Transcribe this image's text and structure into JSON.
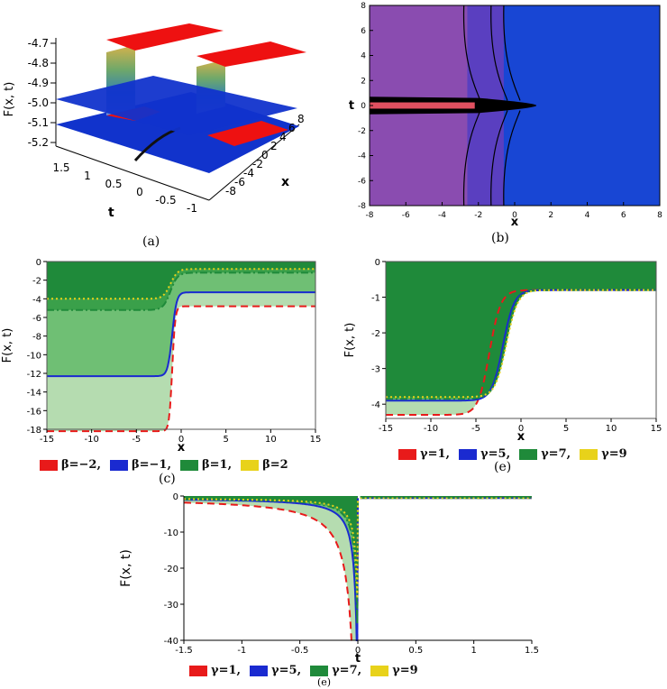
{
  "chart_data": [
    {
      "id": "a",
      "type": "surface3d",
      "caption": "(a)",
      "zlabel": "F(x, t)",
      "zticks": [
        "-4.7",
        "-4.8",
        "-4.9",
        "-5.0",
        "-5.1",
        "-5.2"
      ],
      "tlabel": "t",
      "tticks": [
        "1.5",
        "1",
        "0.5",
        "0",
        "-0.5",
        "-1"
      ],
      "xlabel": "x",
      "xticks": [
        "-8",
        "-6",
        "-4",
        "-2",
        "0",
        "2",
        "4",
        "6",
        "8"
      ],
      "colors": {
        "top": "#ee1111",
        "bottom": "#1133cc"
      }
    },
    {
      "id": "b",
      "type": "contour",
      "caption": "(b)",
      "xlabel": "x",
      "ylabel": "t",
      "xlim": [
        -8,
        8
      ],
      "ylim": [
        -8,
        8
      ],
      "xticks": [
        "-8",
        "-6",
        "-4",
        "-2",
        "0",
        "2",
        "4",
        "6",
        "8"
      ],
      "yticks": [
        "8",
        "6",
        "4",
        "2",
        "0",
        "-2",
        "-4",
        "-6",
        "-8"
      ],
      "regions": {
        "left": "#8a4cb0",
        "middle": "#5a3fc0",
        "right": "#1846d4",
        "stripe": "#e05060"
      }
    },
    {
      "id": "c",
      "type": "line",
      "caption": "(c)",
      "xlabel": "x",
      "ylabel": "F(x, t)",
      "xlim": [
        -15,
        15
      ],
      "ylim": [
        -18,
        0
      ],
      "xticks": [
        "-15",
        "-10",
        "-5",
        "0",
        "5",
        "10",
        "15"
      ],
      "yticks": [
        "0",
        "-2",
        "-4",
        "-6",
        "-8",
        "-10",
        "-12",
        "-14",
        "-16",
        "-18"
      ],
      "series": [
        {
          "name": "β=−2,",
          "color": "#e81a1a",
          "dash": "8,5",
          "left": -18.2,
          "right": -4.8,
          "center": -1.0,
          "k": 6
        },
        {
          "name": "β=−1,",
          "color": "#1a2ad0",
          "dash": "",
          "left": -12.3,
          "right": -3.3,
          "center": -1.0,
          "k": 4
        },
        {
          "name": "β=1,",
          "color": "#1f8a3a",
          "dash": "8,3,2,3",
          "left": -5.2,
          "right": -1.2,
          "center": -1.2,
          "k": 2.5
        },
        {
          "name": "β=2",
          "color": "#e8d21a",
          "dash": "2,3",
          "left": -4.0,
          "right": -0.8,
          "center": -1.2,
          "k": 2.5
        }
      ]
    },
    {
      "id": "d",
      "type": "line",
      "caption": "(e)",
      "xlabel": "x",
      "ylabel": "F(x, t)",
      "xlim": [
        -15,
        15
      ],
      "ylim": [
        -4.4,
        0
      ],
      "xticks": [
        "-15",
        "-10",
        "-5",
        "0",
        "5",
        "10",
        "15"
      ],
      "yticks": [
        "0",
        "-1",
        "-2",
        "-3",
        "-4"
      ],
      "series": [
        {
          "name": "γ=1,",
          "color": "#e81a1a",
          "dash": "8,5",
          "left": -4.3,
          "right": -0.8,
          "center": -3.5,
          "k": 1.6
        },
        {
          "name": "γ=5,",
          "color": "#1a2ad0",
          "dash": "",
          "left": -3.9,
          "right": -0.8,
          "center": -2.0,
          "k": 1.6
        },
        {
          "name": "γ=7,",
          "color": "#1f8a3a",
          "dash": "8,3,2,3",
          "left": -3.85,
          "right": -0.8,
          "center": -1.8,
          "k": 1.6
        },
        {
          "name": "γ=9",
          "color": "#e8d21a",
          "dash": "2,3",
          "left": -3.8,
          "right": -0.8,
          "center": -1.6,
          "k": 1.6
        }
      ]
    },
    {
      "id": "e",
      "type": "line",
      "caption": "(e)",
      "xlabel": "t",
      "ylabel": "F(x, t)",
      "xlim": [
        -1.5,
        1.5
      ],
      "ylim": [
        -40,
        0
      ],
      "xticks": [
        "-1.5",
        "-1",
        "-0.5",
        "0",
        "0.5",
        "1",
        "1.5"
      ],
      "yticks": [
        "0",
        "-10",
        "-20",
        "-30",
        "-40"
      ],
      "series": [
        {
          "name": "γ=1,",
          "color": "#e81a1a",
          "dash": "8,5",
          "scale": 4.0
        },
        {
          "name": "γ=5,",
          "color": "#1a2ad0",
          "dash": "",
          "scale": 1.4
        },
        {
          "name": "γ=7,",
          "color": "#1f8a3a",
          "dash": "8,3,2,3",
          "scale": 1.0
        },
        {
          "name": "γ=9",
          "color": "#e8d21a",
          "dash": "2,3",
          "scale": 0.8
        }
      ]
    }
  ]
}
